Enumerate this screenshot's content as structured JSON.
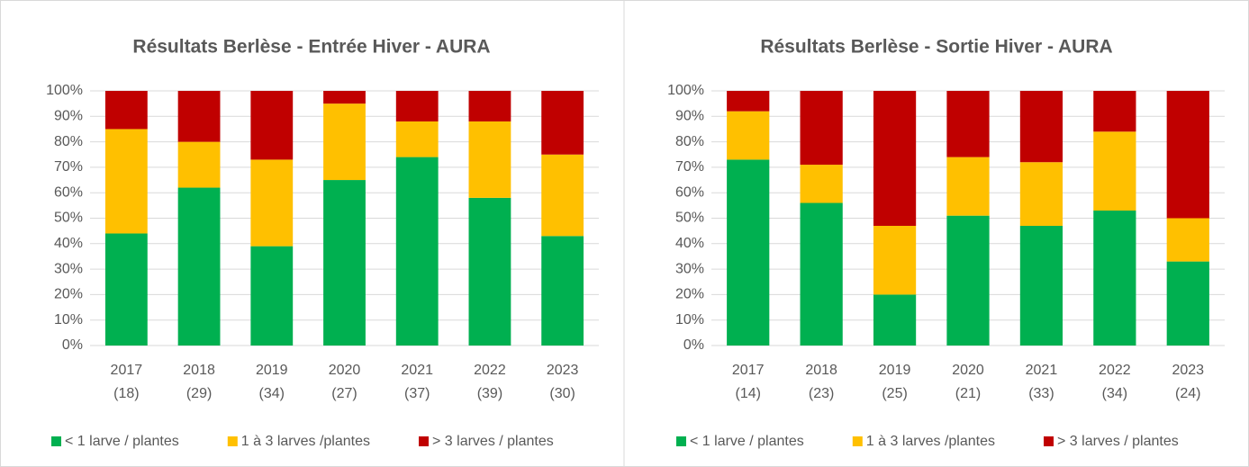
{
  "chart_data": [
    {
      "type": "stacked-bar",
      "title": "Résultats Berlèse - Entrée Hiver - AURA",
      "categories": [
        [
          "2017",
          "(18)"
        ],
        [
          "2018",
          "(29)"
        ],
        [
          "2019",
          "(34)"
        ],
        [
          "2020",
          "(27)"
        ],
        [
          "2021",
          "(37)"
        ],
        [
          "2022",
          "(39)"
        ],
        [
          "2023",
          "(30)"
        ]
      ],
      "series": [
        {
          "name": "< 1 larve / plantes",
          "color": "#00b050",
          "values": [
            44,
            62,
            39,
            65,
            74,
            58,
            43
          ]
        },
        {
          "name": "1 à 3 larves /plantes",
          "color": "#ffc000",
          "values": [
            41,
            18,
            34,
            30,
            14,
            30,
            32
          ]
        },
        {
          "name": "> 3 larves / plantes",
          "color": "#c00000",
          "values": [
            15,
            20,
            27,
            5,
            12,
            12,
            25
          ]
        }
      ],
      "ylim": [
        0,
        100
      ],
      "yticks": [
        {
          "value": 0,
          "label": "0%"
        },
        {
          "value": 10,
          "label": "10%"
        },
        {
          "value": 20,
          "label": "20%"
        },
        {
          "value": 30,
          "label": "30%"
        },
        {
          "value": 40,
          "label": "40%"
        },
        {
          "value": 50,
          "label": "50%"
        },
        {
          "value": 60,
          "label": "60%"
        },
        {
          "value": 70,
          "label": "70%"
        },
        {
          "value": 80,
          "label": "80%"
        },
        {
          "value": 90,
          "label": "90%"
        },
        {
          "value": 100,
          "label": "100%"
        }
      ],
      "grid": true,
      "legend": "bottom"
    },
    {
      "type": "stacked-bar",
      "title": "Résultats Berlèse - Sortie Hiver - AURA",
      "categories": [
        [
          "2017",
          "(14)"
        ],
        [
          "2018",
          "(23)"
        ],
        [
          "2019",
          "(25)"
        ],
        [
          "2020",
          "(21)"
        ],
        [
          "2021",
          "(33)"
        ],
        [
          "2022",
          "(34)"
        ],
        [
          "2023",
          "(24)"
        ]
      ],
      "series": [
        {
          "name": "< 1 larve / plantes",
          "color": "#00b050",
          "values": [
            73,
            56,
            20,
            51,
            47,
            53,
            33
          ]
        },
        {
          "name": "1 à 3 larves /plantes",
          "color": "#ffc000",
          "values": [
            19,
            15,
            27,
            23,
            25,
            31,
            17
          ]
        },
        {
          "name": "> 3 larves / plantes",
          "color": "#c00000",
          "values": [
            8,
            29,
            53,
            26,
            28,
            16,
            50
          ]
        }
      ],
      "ylim": [
        0,
        100
      ],
      "yticks": [
        {
          "value": 0,
          "label": "0%"
        },
        {
          "value": 10,
          "label": "10%"
        },
        {
          "value": 20,
          "label": "20%"
        },
        {
          "value": 30,
          "label": "30%"
        },
        {
          "value": 40,
          "label": "40%"
        },
        {
          "value": 50,
          "label": "50%"
        },
        {
          "value": 60,
          "label": "60%"
        },
        {
          "value": 70,
          "label": "70%"
        },
        {
          "value": 80,
          "label": "80%"
        },
        {
          "value": 90,
          "label": "90%"
        },
        {
          "value": 100,
          "label": "100%"
        }
      ],
      "grid": true,
      "legend": "bottom"
    }
  ]
}
